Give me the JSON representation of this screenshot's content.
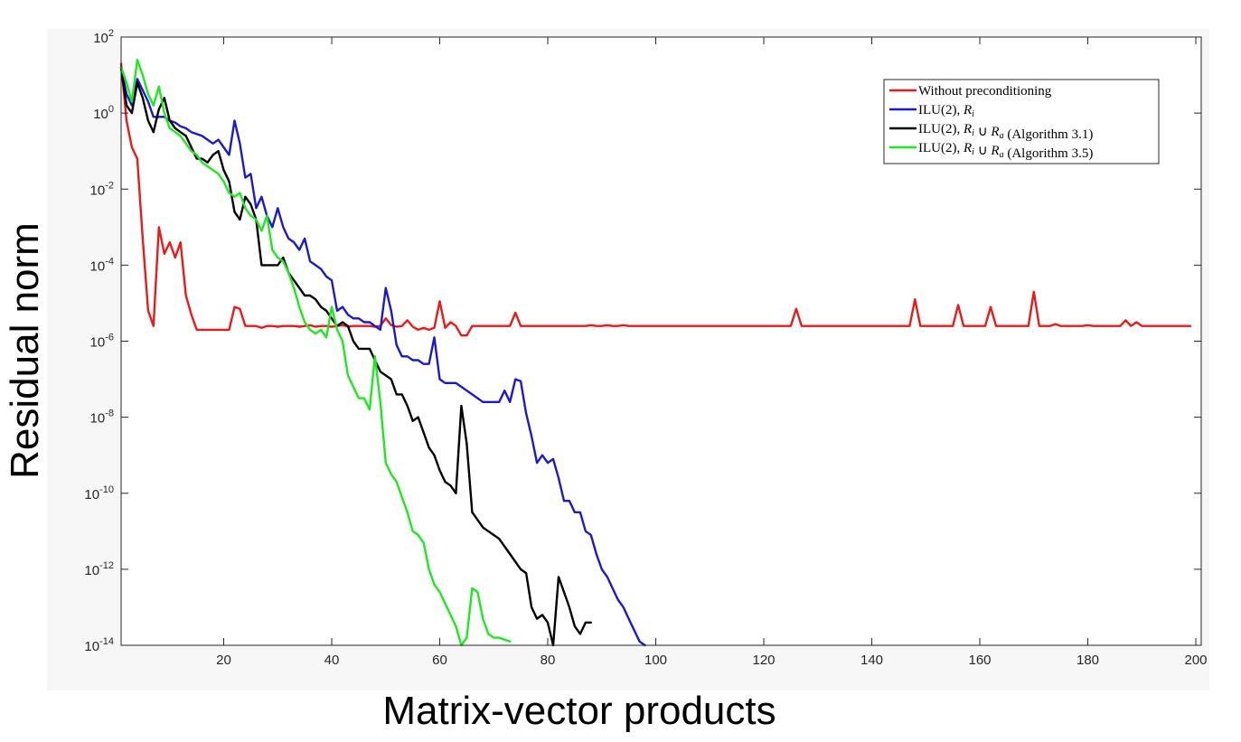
{
  "chart_data": {
    "type": "line",
    "title": "",
    "xlabel": "Matrix-vector products",
    "ylabel": "Residual norm",
    "xlim": [
      1,
      201
    ],
    "ylim_log10": [
      -14,
      2
    ],
    "yscale": "log",
    "grid": false,
    "legend_placement": "top-right",
    "x_ticks": [
      20,
      40,
      60,
      80,
      100,
      120,
      140,
      160,
      180,
      200
    ],
    "x_tick_labels": [
      "20",
      "40",
      "60",
      "80",
      "100",
      "120",
      "140",
      "160",
      "180",
      "200"
    ],
    "y_ticks_log10": [
      -14,
      -12,
      -10,
      -8,
      -6,
      -4,
      -2,
      0,
      2
    ],
    "y_tick_base": "10",
    "y_tick_exponents": [
      "-14",
      "-12",
      "-10",
      "-8",
      "-6",
      "-4",
      "-2",
      "0",
      "2"
    ],
    "series": [
      {
        "name": "Without preconditioning",
        "color": "#e81a1a",
        "x": [
          1,
          2,
          3,
          4,
          5,
          6,
          7,
          8,
          9,
          10,
          11,
          12,
          13,
          14,
          15,
          16,
          17,
          18,
          19,
          20,
          21,
          22,
          23,
          24,
          25,
          26,
          27,
          28,
          29,
          30,
          31,
          32,
          33,
          34,
          35,
          36,
          37,
          38,
          39,
          40,
          41,
          42,
          43,
          44,
          45,
          46,
          47,
          48,
          49,
          50,
          51,
          52,
          53,
          54,
          55,
          56,
          57,
          58,
          59,
          60,
          61,
          62,
          63,
          64,
          65,
          66,
          67,
          68,
          69,
          70,
          71,
          72,
          73,
          74,
          75,
          76,
          77,
          78,
          79,
          80,
          81,
          82,
          83,
          84,
          85,
          86,
          87,
          88,
          89,
          90,
          91,
          92,
          93,
          94,
          95,
          96,
          97,
          98,
          99,
          100,
          101,
          102,
          103,
          104,
          105,
          106,
          107,
          108,
          109,
          110,
          111,
          112,
          113,
          114,
          115,
          116,
          117,
          118,
          119,
          120,
          121,
          122,
          123,
          124,
          125,
          126,
          127,
          128,
          129,
          130,
          131,
          132,
          133,
          134,
          135,
          136,
          137,
          138,
          139,
          140,
          141,
          142,
          143,
          144,
          145,
          146,
          147,
          148,
          149,
          150,
          151,
          152,
          153,
          154,
          155,
          156,
          157,
          158,
          159,
          160,
          161,
          162,
          163,
          164,
          165,
          166,
          167,
          168,
          169,
          170,
          171,
          172,
          173,
          174,
          175,
          176,
          177,
          178,
          179,
          180,
          181,
          182,
          183,
          184,
          185,
          186,
          187,
          188,
          189,
          190,
          191,
          192,
          193,
          194,
          195,
          196,
          197,
          198,
          199,
          200,
          201
        ],
        "log10_y": [
          1.3,
          -0.2,
          -0.9,
          -1.2,
          -3.3,
          -5.2,
          -5.6,
          -3.0,
          -3.7,
          -3.4,
          -3.8,
          -3.4,
          -4.8,
          -5.3,
          -5.7,
          -5.7,
          -5.7,
          -5.7,
          -5.7,
          -5.7,
          -5.7,
          -5.1,
          -5.15,
          -5.6,
          -5.6,
          -5.6,
          -5.65,
          -5.6,
          -5.6,
          -5.62,
          -5.6,
          -5.6,
          -5.6,
          -5.62,
          -5.6,
          -5.58,
          -5.62,
          -5.6,
          -5.6,
          -5.62,
          -5.6,
          -5.58,
          -5.62,
          -5.6,
          -5.6,
          -5.6,
          -5.6,
          -5.62,
          -5.6,
          -5.4,
          -5.58,
          -5.62,
          -5.6,
          -5.45,
          -5.62,
          -5.7,
          -5.65,
          -5.7,
          -5.65,
          -4.95,
          -5.65,
          -5.5,
          -5.6,
          -5.85,
          -5.85,
          -5.6,
          -5.6,
          -5.6,
          -5.6,
          -5.6,
          -5.6,
          -5.6,
          -5.6,
          -5.25,
          -5.6,
          -5.6,
          -5.6,
          -5.6,
          -5.6,
          -5.6,
          -5.6,
          -5.6,
          -5.6,
          -5.6,
          -5.6,
          -5.6,
          -5.6,
          -5.58,
          -5.6,
          -5.6,
          -5.58,
          -5.6,
          -5.6,
          -5.58,
          -5.6,
          -5.6,
          -5.6,
          -5.6,
          -5.6,
          -5.6,
          -5.6,
          -5.6,
          -5.6,
          -5.6,
          -5.6,
          -5.6,
          -5.6,
          -5.6,
          -5.6,
          -5.6,
          -5.6,
          -5.6,
          -5.6,
          -5.6,
          -5.6,
          -5.6,
          -5.6,
          -5.6,
          -5.6,
          -5.6,
          -5.6,
          -5.6,
          -5.6,
          -5.6,
          -5.6,
          -5.15,
          -5.6,
          -5.6,
          -5.6,
          -5.6,
          -5.6,
          -5.6,
          -5.6,
          -5.6,
          -5.6,
          -5.6,
          -5.6,
          -5.6,
          -5.6,
          -5.6,
          -5.6,
          -5.6,
          -5.6,
          -5.6,
          -5.6,
          -5.6,
          -5.6,
          -4.9,
          -5.6,
          -5.6,
          -5.6,
          -5.6,
          -5.6,
          -5.6,
          -5.6,
          -5.05,
          -5.6,
          -5.6,
          -5.6,
          -5.6,
          -5.6,
          -5.1,
          -5.6,
          -5.6,
          -5.6,
          -5.6,
          -5.6,
          -5.6,
          -5.6,
          -4.7,
          -5.6,
          -5.6,
          -5.6,
          -5.55,
          -5.6,
          -5.6,
          -5.6,
          -5.6,
          -5.6,
          -5.58,
          -5.6,
          -5.6,
          -5.6,
          -5.6,
          -5.6,
          -5.6,
          -5.45,
          -5.6,
          -5.5,
          -5.6,
          -5.6,
          -5.6,
          -5.6,
          -5.6,
          -5.6,
          -5.6,
          -5.6,
          -5.6,
          -5.6
        ]
      },
      {
        "name": "ILU(2), R_i",
        "color": "#1a1acc",
        "x": [
          1,
          2,
          3,
          4,
          5,
          6,
          7,
          8,
          9,
          10,
          11,
          12,
          13,
          14,
          15,
          16,
          17,
          18,
          19,
          20,
          21,
          22,
          23,
          24,
          25,
          26,
          27,
          28,
          29,
          30,
          31,
          32,
          33,
          34,
          35,
          36,
          37,
          38,
          39,
          40,
          41,
          42,
          43,
          44,
          45,
          46,
          47,
          48,
          49,
          50,
          51,
          52,
          53,
          54,
          55,
          56,
          57,
          58,
          59,
          60,
          61,
          62,
          63,
          64,
          65,
          66,
          67,
          68,
          69,
          70,
          71,
          72,
          73,
          74,
          75,
          76,
          77,
          78,
          79,
          80,
          81,
          82,
          83,
          84,
          85,
          86,
          87,
          88,
          89,
          90,
          91,
          92,
          93,
          94,
          95,
          96,
          97,
          98
        ],
        "log10_y": [
          1.2,
          0.5,
          0.2,
          0.9,
          0.6,
          0.3,
          -0.1,
          -0.1,
          -0.1,
          -0.2,
          -0.25,
          -0.35,
          -0.4,
          -0.5,
          -0.55,
          -0.6,
          -0.7,
          -0.8,
          -0.7,
          -0.9,
          -1.1,
          -0.2,
          -0.8,
          -1.7,
          -1.6,
          -2.5,
          -2.2,
          -2.7,
          -3.0,
          -2.5,
          -3.0,
          -3.3,
          -3.4,
          -3.6,
          -3.3,
          -3.9,
          -4.0,
          -4.1,
          -4.3,
          -4.4,
          -5.2,
          -5.1,
          -5.3,
          -5.4,
          -5.4,
          -5.5,
          -5.5,
          -5.6,
          -5.7,
          -4.6,
          -5.2,
          -6.1,
          -6.4,
          -6.4,
          -6.5,
          -6.5,
          -6.6,
          -6.6,
          -5.9,
          -7.0,
          -7.1,
          -7.1,
          -7.1,
          -7.2,
          -7.3,
          -7.4,
          -7.5,
          -7.6,
          -7.6,
          -7.6,
          -7.6,
          -7.3,
          -7.6,
          -7.0,
          -7.05,
          -7.9,
          -8.5,
          -9.2,
          -9.0,
          -9.2,
          -9.1,
          -9.6,
          -10.2,
          -10.2,
          -10.5,
          -10.5,
          -11.0,
          -11.1,
          -11.6,
          -12.0,
          -12.2,
          -12.5,
          -12.8,
          -13.0,
          -13.3,
          -13.6,
          -13.9,
          -14.0
        ]
      },
      {
        "name": "ILU(2), R_i ∪ R_a (Algorithm 3.1)",
        "color": "#000000",
        "x": [
          1,
          2,
          3,
          4,
          5,
          6,
          7,
          8,
          9,
          10,
          11,
          12,
          13,
          14,
          15,
          16,
          17,
          18,
          19,
          20,
          21,
          22,
          23,
          24,
          25,
          26,
          27,
          28,
          29,
          30,
          31,
          32,
          33,
          34,
          35,
          36,
          37,
          38,
          39,
          40,
          41,
          42,
          43,
          44,
          45,
          46,
          47,
          48,
          49,
          50,
          51,
          52,
          53,
          54,
          55,
          56,
          57,
          58,
          59,
          60,
          61,
          62,
          63,
          64,
          65,
          66,
          67,
          68,
          69,
          70,
          71,
          72,
          73,
          74,
          75,
          76,
          77,
          78,
          79,
          80,
          81,
          82,
          83,
          84,
          85,
          86,
          87,
          88
        ],
        "log10_y": [
          1.2,
          0.2,
          0.0,
          0.8,
          0.4,
          -0.2,
          -0.5,
          0.1,
          0.4,
          -0.2,
          -0.4,
          -0.5,
          -0.6,
          -0.9,
          -1.2,
          -1.2,
          -1.3,
          -1.1,
          -1.0,
          -1.5,
          -1.8,
          -2.6,
          -2.8,
          -2.2,
          -2.4,
          -2.8,
          -4.0,
          -4.0,
          -4.0,
          -4.0,
          -3.8,
          -4.2,
          -4.4,
          -4.6,
          -4.8,
          -4.8,
          -4.9,
          -5.1,
          -5.2,
          -5.4,
          -5.6,
          -5.5,
          -5.6,
          -6.0,
          -6.2,
          -6.2,
          -6.2,
          -6.5,
          -6.8,
          -6.9,
          -7.0,
          -7.4,
          -7.4,
          -7.7,
          -8.1,
          -8.0,
          -8.4,
          -8.8,
          -9.0,
          -9.4,
          -9.7,
          -9.8,
          -10.0,
          -7.7,
          -8.7,
          -10.5,
          -10.7,
          -10.9,
          -11.0,
          -11.1,
          -11.2,
          -11.4,
          -11.6,
          -11.8,
          -12.0,
          -12.1,
          -13.0,
          -13.3,
          -13.2,
          -13.4,
          -14.0,
          -12.2,
          -12.6,
          -13.0,
          -13.5,
          -13.7,
          -13.4,
          -13.4
        ]
      },
      {
        "name": "ILU(2), R_i ∪ R_a (Algorithm 3.5)",
        "color": "#1ee81e",
        "x": [
          1,
          2,
          3,
          4,
          5,
          6,
          7,
          8,
          9,
          10,
          11,
          12,
          13,
          14,
          15,
          16,
          17,
          18,
          19,
          20,
          21,
          22,
          23,
          24,
          25,
          26,
          27,
          28,
          29,
          30,
          31,
          32,
          33,
          34,
          35,
          36,
          37,
          38,
          39,
          40,
          41,
          42,
          43,
          44,
          45,
          46,
          47,
          48,
          49,
          50,
          51,
          52,
          53,
          54,
          55,
          56,
          57,
          58,
          59,
          60,
          61,
          62,
          63,
          64,
          65,
          66,
          67,
          68,
          69,
          70,
          71,
          72,
          73
        ],
        "log10_y": [
          1.2,
          0.8,
          0.3,
          1.4,
          1.0,
          0.5,
          0.2,
          0.7,
          0.0,
          -0.4,
          -0.5,
          -0.6,
          -0.8,
          -1.0,
          -1.1,
          -1.3,
          -1.4,
          -1.5,
          -1.6,
          -1.8,
          -2.1,
          -2.2,
          -2.1,
          -2.5,
          -2.7,
          -2.8,
          -3.1,
          -2.7,
          -3.6,
          -3.8,
          -3.9,
          -4.2,
          -4.6,
          -5.1,
          -5.5,
          -5.7,
          -5.8,
          -5.7,
          -5.9,
          -5.1,
          -5.7,
          -6.0,
          -6.9,
          -7.2,
          -7.5,
          -7.5,
          -7.8,
          -6.4,
          -7.6,
          -9.2,
          -9.5,
          -9.7,
          -10.1,
          -10.5,
          -11.0,
          -11.1,
          -11.3,
          -12.0,
          -12.4,
          -12.6,
          -12.9,
          -13.2,
          -13.5,
          -14.0,
          -13.8,
          -12.5,
          -12.6,
          -13.3,
          -13.7,
          -13.8,
          -13.8,
          -13.85,
          -13.9
        ]
      }
    ],
    "legend": [
      {
        "text": "Without preconditioning",
        "color": "#e81a1a"
      },
      {
        "text": "ILU(2), R_i",
        "color": "#1a1acc"
      },
      {
        "text": "ILU(2), R_i ∪ R_a (Algorithm 3.1)",
        "color": "#000000"
      },
      {
        "text": "ILU(2), R_i ∪ R_a (Algorithm 3.5)",
        "color": "#1ee81e"
      }
    ]
  }
}
